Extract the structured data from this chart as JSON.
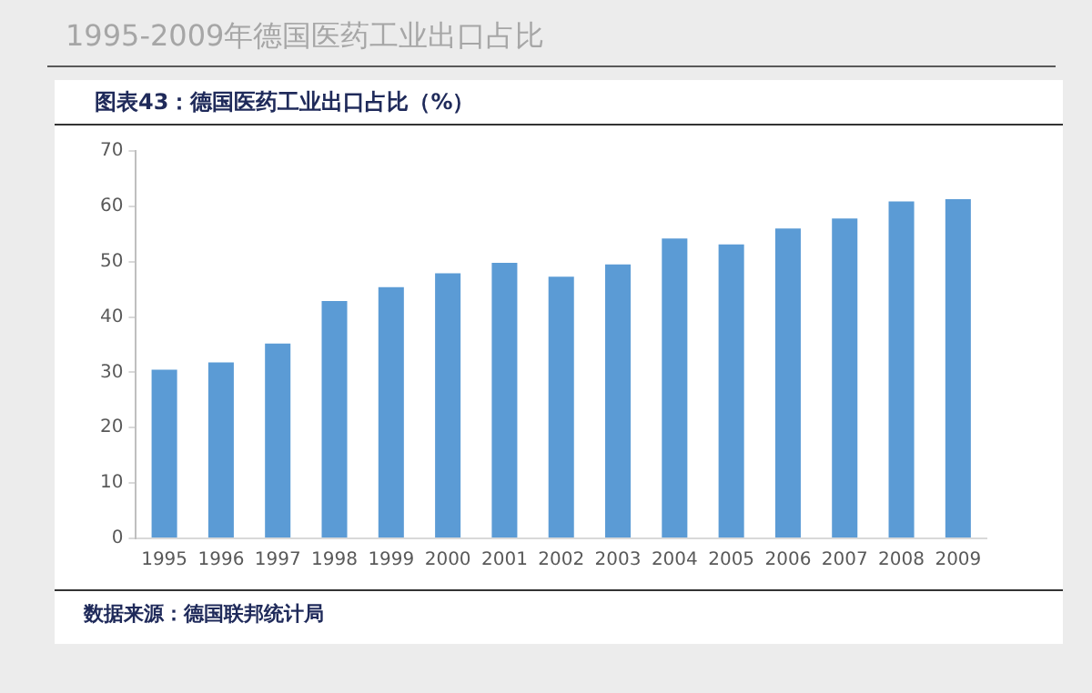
{
  "chart_data": {
    "type": "bar",
    "title": "1995-2009年德国医药工业出口占比",
    "subtitle": "图表43：德国医药工业出口占比（%）",
    "annotations": [
      "数据来源：德国联邦统计局"
    ],
    "categories": [
      "1995",
      "1996",
      "1997",
      "1998",
      "1999",
      "2000",
      "2001",
      "2002",
      "2003",
      "2004",
      "2005",
      "2006",
      "2007",
      "2008",
      "2009"
    ],
    "values": [
      30.5,
      31.8,
      35.2,
      42.9,
      45.4,
      47.9,
      49.8,
      47.3,
      49.5,
      54.2,
      53.1,
      56.0,
      57.8,
      60.9,
      61.3
    ],
    "color": "#5b9bd5",
    "ylim": [
      0,
      70
    ],
    "yticks": [
      0,
      10,
      20,
      30,
      40,
      50,
      60,
      70
    ],
    "grid": false,
    "legend": false
  }
}
